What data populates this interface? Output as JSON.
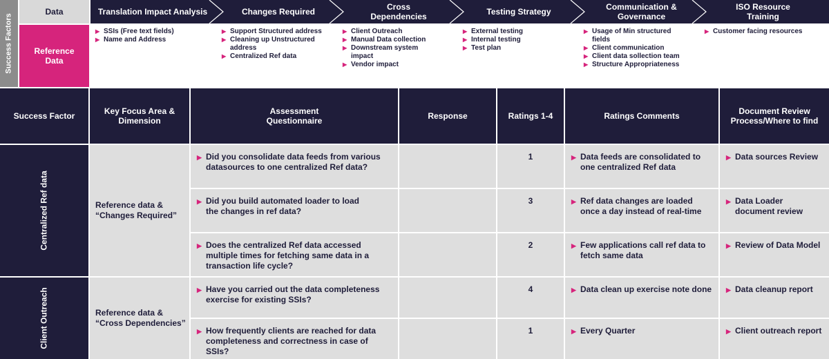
{
  "top": {
    "side_label": "Success Factors",
    "data_label": "Data",
    "row_label": "Reference Data",
    "steps": [
      {
        "title": "Translation Impact Analysis",
        "items": [
          "SSIs (Free text fields)",
          "Name and Address"
        ]
      },
      {
        "title": "Changes Required",
        "items": [
          "Support Structured address",
          "Cleaning up Unstructured address",
          "Centralized Ref data"
        ]
      },
      {
        "title": "Cross Dependencies",
        "items": [
          "Client Outreach",
          "Manual Data collection",
          "Downstream system impact",
          "Vendor impact"
        ]
      },
      {
        "title": "Testing Strategy",
        "items": [
          "External testing",
          "Internal testing",
          "Test plan"
        ]
      },
      {
        "title": "Communication & Governance",
        "items": [
          "Usage of Min structured fields",
          "Client communication",
          "Client data sollection team",
          "Structure Appropriateness"
        ]
      },
      {
        "title": "ISO Resource Training",
        "items": [
          "Customer facing resources"
        ]
      }
    ]
  },
  "table": {
    "headers": [
      "Success Factor",
      "Key Focus Area & Dimension",
      "Assessment Questionnaire",
      "Response",
      "Ratings 1-4",
      "Ratings Comments",
      "Document Review Process/Where to find"
    ],
    "groups": [
      {
        "factor": "Centralized Ref data",
        "focus": "Reference data & “Changes Required”",
        "rows": [
          {
            "question": "Did you consolidate data feeds from various datasources to one centralized Ref data?",
            "response": "",
            "rating": "1",
            "comment": "Data feeds are consolidated to one centralized Ref data",
            "review": "Data sources Review"
          },
          {
            "question": "Did you build automated loader to load the changes in ref data?",
            "response": "",
            "rating": "3",
            "comment": "Ref data changes are loaded once a day instead of real-time",
            "review": "Data Loader document review"
          },
          {
            "question": "Does the centralized Ref data accessed multiple times for fetching same data in a transaction life cycle?",
            "response": "",
            "rating": "2",
            "comment": "Few applications call ref data to fetch same data",
            "review": "Review of Data Model"
          }
        ]
      },
      {
        "factor": "Client Outreach",
        "focus": "Reference data & “Cross Dependencies”",
        "rows": [
          {
            "question": "Have you carried out the data completeness exercise for existing SSIs?",
            "response": "",
            "rating": "4",
            "comment": "Data clean up exercise note done",
            "review": "Data cleanup report"
          },
          {
            "question": "How frequently clients are reached for data completeness and correctness in case of SSIs?",
            "response": "",
            "rating": "1",
            "comment": "Every Quarter",
            "review": "Client outreach report"
          }
        ]
      }
    ]
  },
  "colors": {
    "navy": "#1f1d3a",
    "magenta": "#d6247c",
    "gray": "#dedede",
    "side_gray": "#8c8c8c"
  },
  "icons": {
    "bullet": "triangle-right-icon",
    "step_separator": "chevron-right-icon"
  }
}
